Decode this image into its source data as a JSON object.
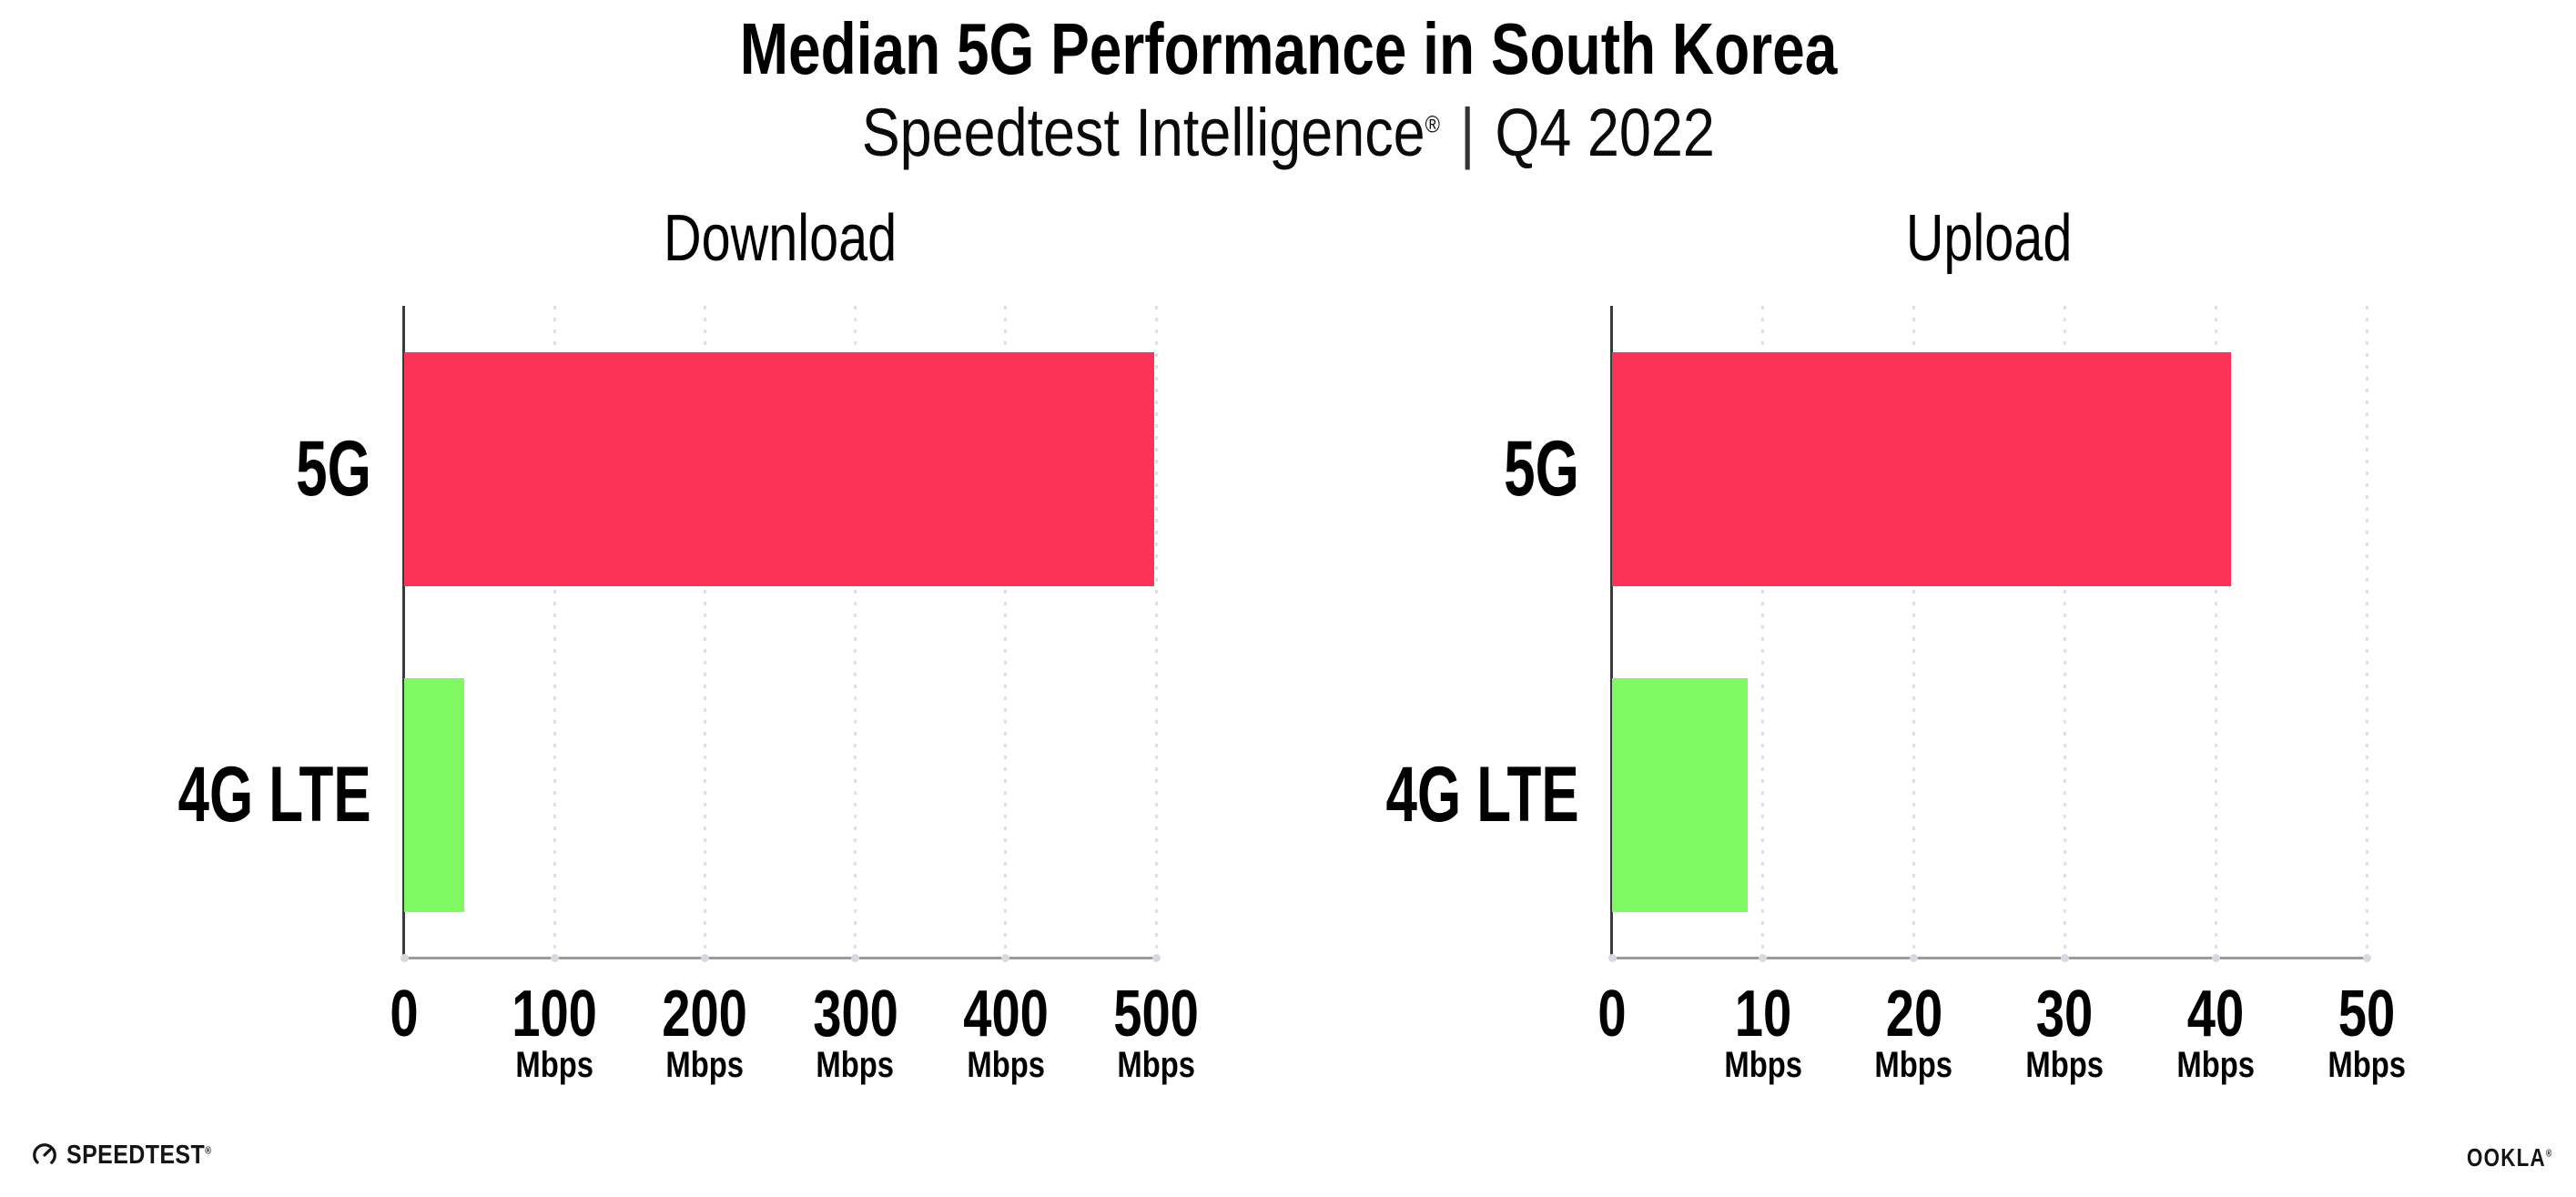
{
  "header": {
    "title": "Median 5G Performance in South Korea",
    "subtitle_product": "Speedtest Intelligence",
    "subtitle_reg": "®",
    "subtitle_separator": "|",
    "subtitle_period": "Q4 2022"
  },
  "chart_data": [
    {
      "type": "bar",
      "orientation": "horizontal",
      "title": "Download",
      "categories": [
        "5G",
        "4G LTE"
      ],
      "values": [
        499,
        40
      ],
      "unit": "Mbps",
      "xlabel": "",
      "ylabel": "",
      "xlim": [
        0,
        500
      ],
      "xticks": [
        0,
        100,
        200,
        300,
        400,
        500
      ],
      "bar_colors": [
        "#FC3356",
        "#7FFA62"
      ],
      "grid": "dotted vertical gridlines at each tick",
      "legend_position": "none"
    },
    {
      "type": "bar",
      "orientation": "horizontal",
      "title": "Upload",
      "categories": [
        "5G",
        "4G LTE"
      ],
      "values": [
        41,
        9
      ],
      "unit": "Mbps",
      "xlabel": "",
      "ylabel": "",
      "xlim": [
        0,
        50
      ],
      "xticks": [
        0,
        10,
        20,
        30,
        40,
        50
      ],
      "bar_colors": [
        "#FC3356",
        "#7FFA62"
      ],
      "grid": "dotted vertical gridlines at each tick",
      "legend_position": "none"
    }
  ],
  "colors": {
    "bar_5g": "#FC3356",
    "bar_4g_lte": "#7FFA62",
    "gridline": "#DEDEE6",
    "y_axis": "#3B3B3B",
    "x_axis": "#9B9B9B",
    "text": "#000000"
  },
  "icons": {
    "speedtest_logo": "speedtest-gauge-icon"
  },
  "footer": {
    "speedtest_label": "SPEEDTEST",
    "speedtest_reg": "®",
    "ookla_label": "OOKLA",
    "ookla_reg": "®"
  }
}
